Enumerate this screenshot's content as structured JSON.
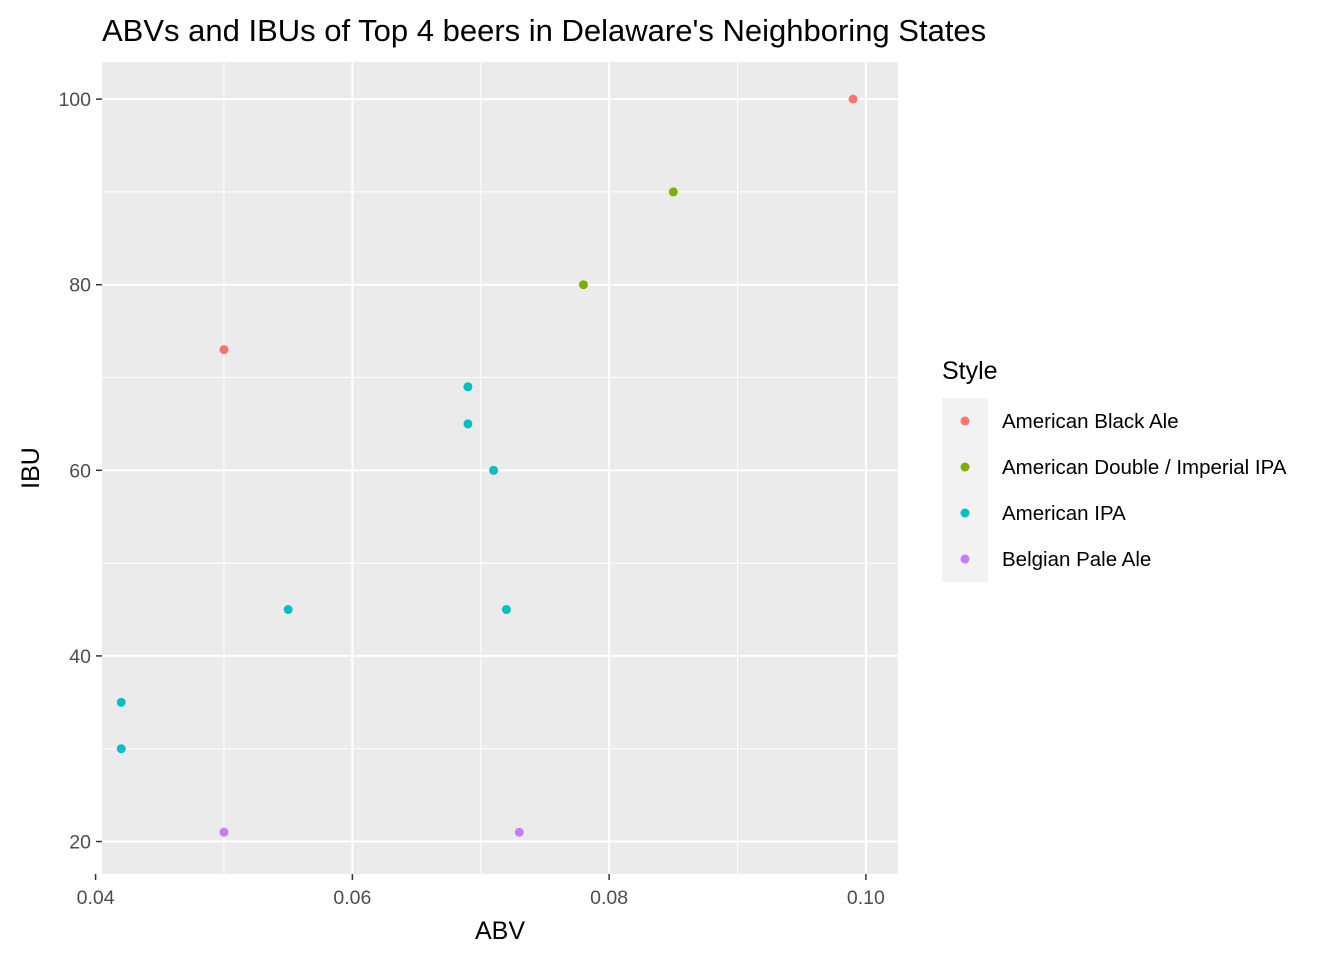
{
  "chart_data": {
    "type": "scatter",
    "title": "ABVs and IBUs of Top 4 beers in Delaware's Neighboring States",
    "xlabel": "ABV",
    "ylabel": "IBU",
    "xlim": [
      0.0405,
      0.1025
    ],
    "ylim": [
      16.5,
      104
    ],
    "x_ticks": [
      0.04,
      0.06,
      0.08,
      0.1
    ],
    "x_tick_labels": [
      "0.04",
      "0.06",
      "0.08",
      "0.10"
    ],
    "y_ticks": [
      20,
      40,
      60,
      80,
      100
    ],
    "y_tick_labels": [
      "20",
      "40",
      "60",
      "80",
      "100"
    ],
    "grid": true,
    "legend": {
      "title": "Style",
      "position": "right"
    },
    "series": [
      {
        "name": "American Black Ale",
        "color": "#F8766D",
        "points": [
          {
            "x": 0.05,
            "y": 73
          },
          {
            "x": 0.099,
            "y": 100
          }
        ]
      },
      {
        "name": "American Double / Imperial IPA",
        "color": "#7CAE00",
        "points": [
          {
            "x": 0.078,
            "y": 80
          },
          {
            "x": 0.085,
            "y": 90
          }
        ]
      },
      {
        "name": "American IPA",
        "color": "#00BFC4",
        "points": [
          {
            "x": 0.042,
            "y": 35
          },
          {
            "x": 0.042,
            "y": 30
          },
          {
            "x": 0.055,
            "y": 45
          },
          {
            "x": 0.069,
            "y": 69
          },
          {
            "x": 0.069,
            "y": 65
          },
          {
            "x": 0.071,
            "y": 60
          },
          {
            "x": 0.072,
            "y": 45
          }
        ]
      },
      {
        "name": "Belgian Pale Ale",
        "color": "#C77CFF",
        "points": [
          {
            "x": 0.05,
            "y": 21
          },
          {
            "x": 0.073,
            "y": 21
          }
        ]
      }
    ]
  }
}
